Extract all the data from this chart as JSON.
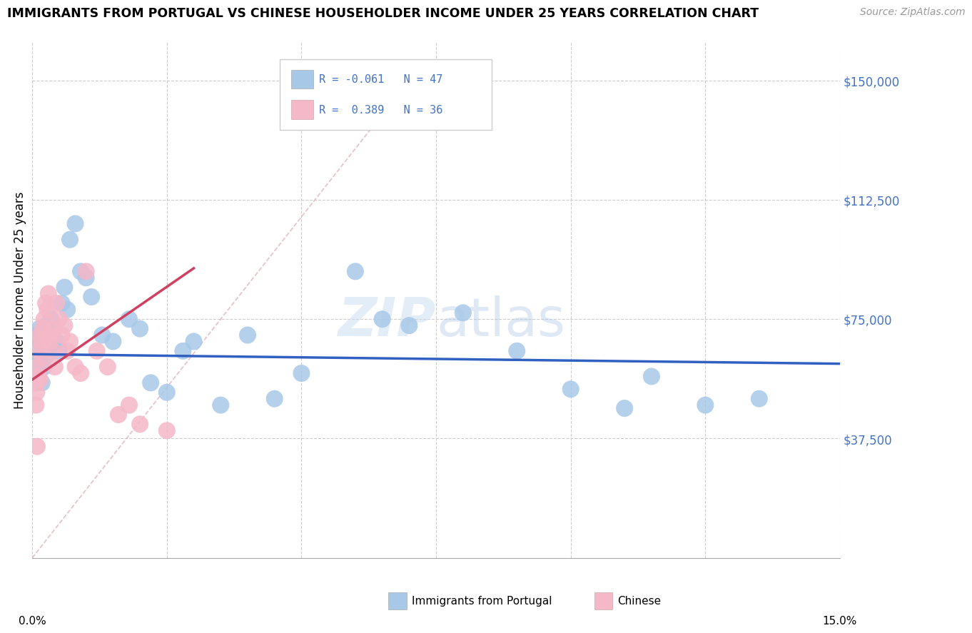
{
  "title": "IMMIGRANTS FROM PORTUGAL VS CHINESE HOUSEHOLDER INCOME UNDER 25 YEARS CORRELATION CHART",
  "source": "Source: ZipAtlas.com",
  "ylabel": "Householder Income Under 25 years",
  "y_ticks": [
    0,
    37500,
    75000,
    112500,
    150000
  ],
  "y_tick_labels": [
    "",
    "$37,500",
    "$75,000",
    "$112,500",
    "$150,000"
  ],
  "x_min": 0.0,
  "x_max": 15.0,
  "y_min": 0,
  "y_max": 162000,
  "portugal_color": "#a8c8e8",
  "chinese_color": "#f5b8c8",
  "portugal_line_color": "#3060c0",
  "chinese_line_color": "#d04060",
  "diag_color": "#e0a0b0",
  "portugal_R": -0.061,
  "portugal_N": 47,
  "chinese_R": 0.389,
  "chinese_N": 36,
  "portugal_x": [
    0.08,
    0.09,
    0.1,
    0.11,
    0.12,
    0.13,
    0.15,
    0.18,
    0.2,
    0.22,
    0.25,
    0.28,
    0.3,
    0.35,
    0.4,
    0.45,
    0.5,
    0.55,
    0.6,
    0.7,
    0.8,
    0.9,
    1.0,
    1.1,
    1.3,
    1.5,
    1.8,
    2.0,
    2.2,
    2.5,
    3.0,
    3.5,
    4.0,
    5.0,
    6.0,
    6.5,
    7.0,
    8.0,
    9.0,
    10.0,
    11.0,
    11.5,
    12.5,
    13.5,
    4.5,
    2.8,
    0.65
  ],
  "portugal_y": [
    65000,
    70000,
    62000,
    68000,
    58000,
    72000,
    63000,
    55000,
    67000,
    60000,
    73000,
    64000,
    70000,
    75000,
    72000,
    68000,
    65000,
    80000,
    85000,
    100000,
    105000,
    90000,
    88000,
    82000,
    70000,
    68000,
    75000,
    72000,
    55000,
    52000,
    68000,
    48000,
    70000,
    58000,
    90000,
    75000,
    73000,
    77000,
    65000,
    53000,
    47000,
    57000,
    48000,
    50000,
    50000,
    65000,
    78000
  ],
  "chinese_x": [
    0.05,
    0.07,
    0.08,
    0.1,
    0.12,
    0.13,
    0.15,
    0.17,
    0.18,
    0.2,
    0.22,
    0.25,
    0.28,
    0.3,
    0.33,
    0.35,
    0.38,
    0.4,
    0.42,
    0.45,
    0.5,
    0.55,
    0.6,
    0.65,
    0.7,
    0.8,
    0.9,
    1.0,
    1.2,
    1.4,
    1.6,
    1.8,
    2.0,
    2.5,
    0.09,
    0.14
  ],
  "chinese_y": [
    55000,
    48000,
    52000,
    60000,
    57000,
    65000,
    70000,
    68000,
    63000,
    72000,
    75000,
    80000,
    78000,
    83000,
    68000,
    70000,
    65000,
    72000,
    60000,
    80000,
    75000,
    70000,
    73000,
    65000,
    68000,
    60000,
    58000,
    90000,
    65000,
    60000,
    45000,
    48000,
    42000,
    40000,
    35000,
    56000
  ]
}
